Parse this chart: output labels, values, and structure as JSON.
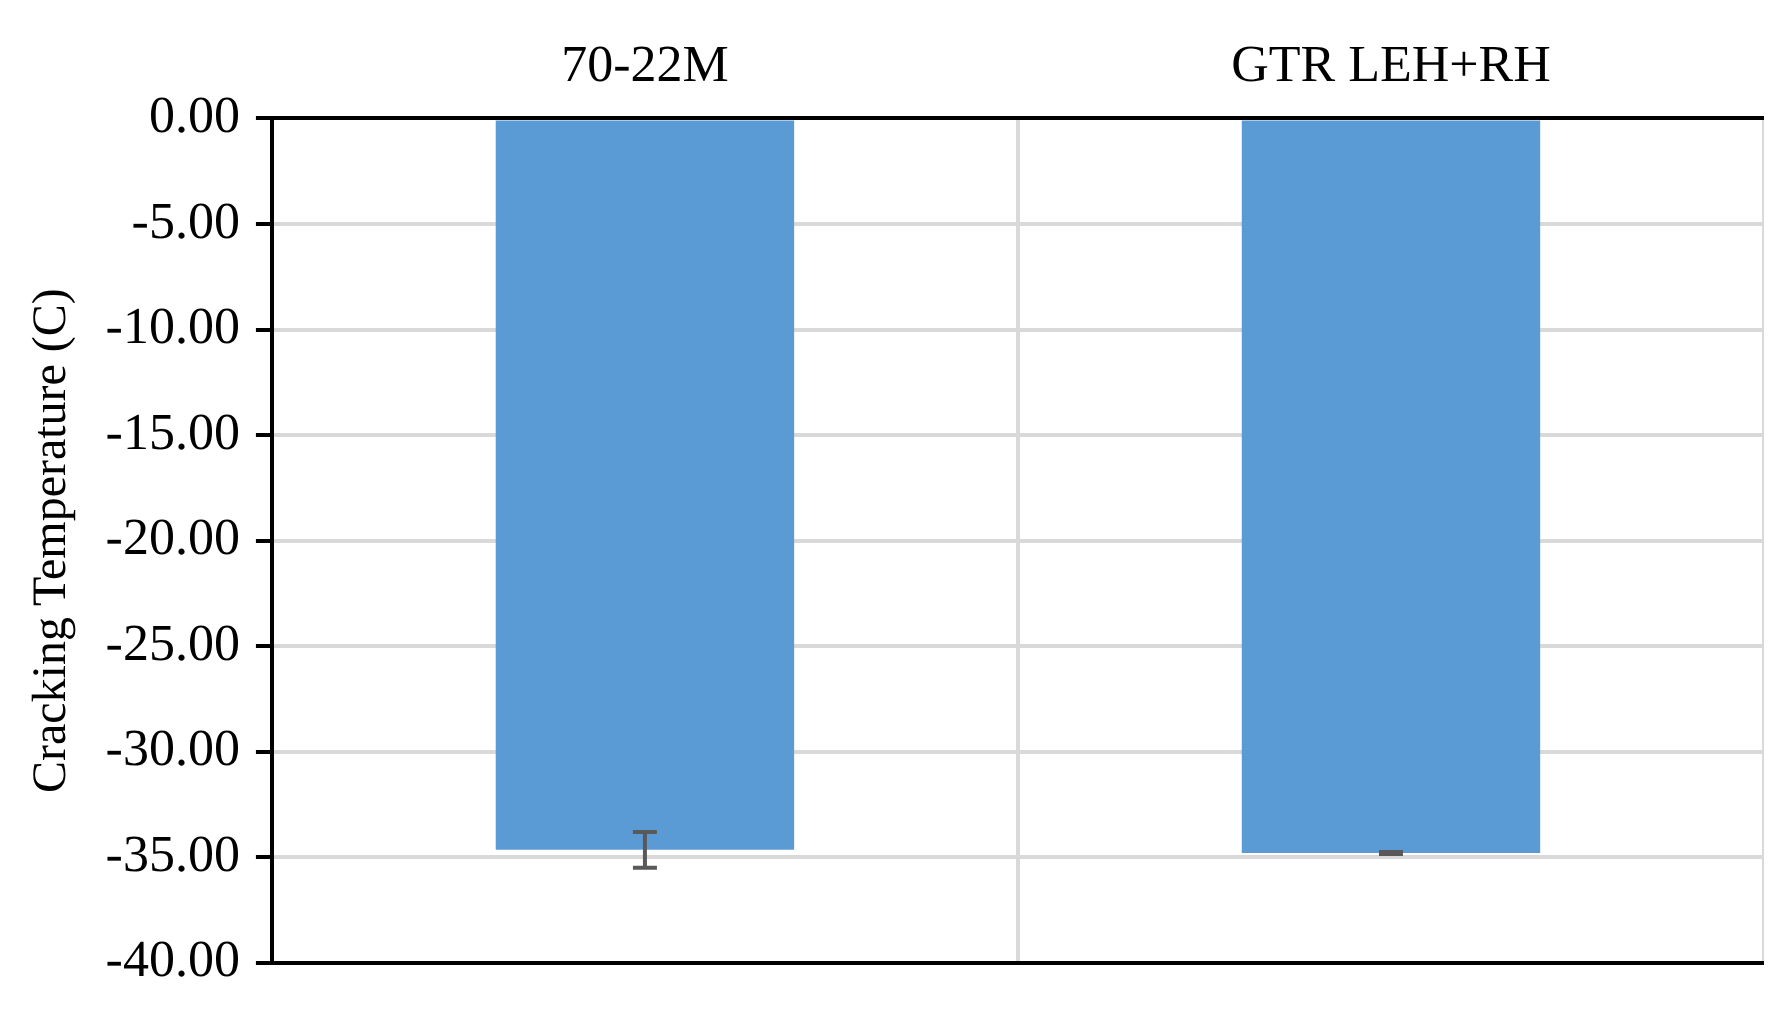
{
  "chart_data": {
    "type": "bar",
    "ylabel": "Cracking Temperature (C)",
    "categories": [
      "70-22M",
      "GTR LEH+RH"
    ],
    "series": [
      {
        "color": "#5b9bd5",
        "values": [
          -34.65,
          -34.8
        ],
        "errors": [
          0.85,
          0.05
        ]
      }
    ],
    "ylim": [
      -40,
      0
    ],
    "yticks": [
      {
        "value": 0,
        "label": "0.00"
      },
      {
        "value": -5,
        "label": "-5.00"
      },
      {
        "value": -10,
        "label": "-10.00"
      },
      {
        "value": -15,
        "label": "-15.00"
      },
      {
        "value": -20,
        "label": "-20.00"
      },
      {
        "value": -25,
        "label": "-25.00"
      },
      {
        "value": -30,
        "label": "-30.00"
      },
      {
        "value": -35,
        "label": "-35.00"
      },
      {
        "value": -40,
        "label": "-40.00"
      }
    ],
    "grid": true,
    "legend": false
  }
}
